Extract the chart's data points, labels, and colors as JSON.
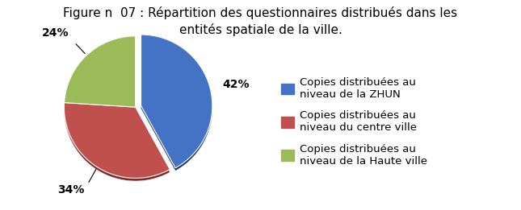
{
  "title": "Figure n  07 : Répartition des questionnaires distribués dans les\nentités spatiale de la ville.",
  "slices": [
    42,
    34,
    24
  ],
  "colors": [
    "#4472C4",
    "#C0504D",
    "#9BBB59"
  ],
  "dark_colors": [
    "#1F3864",
    "#7B2C2A",
    "#4F6228"
  ],
  "explode": [
    0.08,
    0.0,
    0.0
  ],
  "labels_pct": [
    "42%",
    "34%",
    "24%"
  ],
  "legend_labels": [
    "Copies distribuées au\nniveau de la ZHUN",
    "Copies distribuées au\nniveau du centre ville",
    "Copies distribuées au\nniveau de la Haute ville"
  ],
  "background_color": "#ffffff",
  "label_fontsize": 10,
  "title_fontsize": 11,
  "legend_fontsize": 9.5,
  "startangle": 90
}
